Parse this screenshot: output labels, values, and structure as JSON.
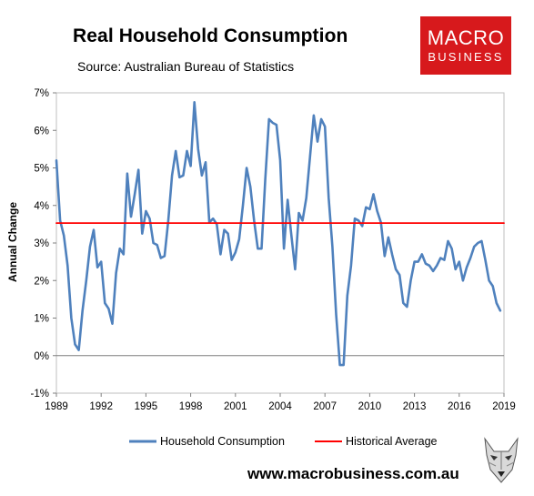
{
  "header": {
    "title": "Real Household Consumption",
    "subtitle": "Source: Australian Bureau of Statistics"
  },
  "logo": {
    "line1": "MACRO",
    "line2": "BUSINESS",
    "bg_color": "#d7191c"
  },
  "footer": {
    "website": "www.macrobusiness.com.au"
  },
  "chart_data": {
    "type": "line",
    "title": "Real Household Consumption",
    "ylabel": "Annual Change",
    "xlabel": "",
    "xlim": [
      1989,
      2019
    ],
    "ylim": [
      -1,
      7
    ],
    "x_ticks": [
      "1989",
      "1992",
      "1995",
      "1998",
      "2001",
      "2004",
      "2007",
      "2010",
      "2013",
      "2016",
      "2019"
    ],
    "y_ticks": [
      "-1%",
      "0%",
      "1%",
      "2%",
      "3%",
      "4%",
      "5%",
      "6%",
      "7%"
    ],
    "legend_position": "bottom",
    "series": [
      {
        "name": "Household Consumption",
        "color": "#4f81bd",
        "x": [
          1989.0,
          1989.25,
          1989.5,
          1989.75,
          1990.0,
          1990.25,
          1990.5,
          1990.75,
          1991.0,
          1991.25,
          1991.5,
          1991.75,
          1992.0,
          1992.25,
          1992.5,
          1992.75,
          1993.0,
          1993.25,
          1993.5,
          1993.75,
          1994.0,
          1994.25,
          1994.5,
          1994.75,
          1995.0,
          1995.25,
          1995.5,
          1995.75,
          1996.0,
          1996.25,
          1996.5,
          1996.75,
          1997.0,
          1997.25,
          1997.5,
          1997.75,
          1998.0,
          1998.25,
          1998.5,
          1998.75,
          1999.0,
          1999.25,
          1999.5,
          1999.75,
          2000.0,
          2000.25,
          2000.5,
          2000.75,
          2001.0,
          2001.25,
          2001.5,
          2001.75,
          2002.0,
          2002.25,
          2002.5,
          2002.75,
          2003.0,
          2003.25,
          2003.5,
          2003.75,
          2004.0,
          2004.25,
          2004.5,
          2004.75,
          2005.0,
          2005.25,
          2005.5,
          2005.75,
          2006.0,
          2006.25,
          2006.5,
          2006.75,
          2007.0,
          2007.25,
          2007.5,
          2007.75,
          2008.0,
          2008.25,
          2008.5,
          2008.75,
          2009.0,
          2009.25,
          2009.5,
          2009.75,
          2010.0,
          2010.25,
          2010.5,
          2010.75,
          2011.0,
          2011.25,
          2011.5,
          2011.75,
          2012.0,
          2012.25,
          2012.5,
          2012.75,
          2013.0,
          2013.25,
          2013.5,
          2013.75,
          2014.0,
          2014.25,
          2014.5,
          2014.75,
          2015.0,
          2015.25,
          2015.5,
          2015.75,
          2016.0,
          2016.25,
          2016.5,
          2016.75,
          2017.0,
          2017.25,
          2017.5,
          2017.75,
          2018.0,
          2018.25,
          2018.5,
          2018.75
        ],
        "values": [
          5.2,
          3.6,
          3.2,
          2.4,
          1.0,
          0.3,
          0.15,
          1.2,
          2.0,
          2.9,
          3.35,
          2.35,
          2.5,
          1.4,
          1.25,
          0.85,
          2.2,
          2.85,
          2.7,
          4.85,
          3.7,
          4.3,
          4.95,
          3.25,
          3.85,
          3.65,
          3.0,
          2.95,
          2.6,
          2.65,
          3.6,
          4.8,
          5.45,
          4.75,
          4.8,
          5.45,
          5.05,
          6.75,
          5.5,
          4.8,
          5.15,
          3.55,
          3.65,
          3.5,
          2.7,
          3.35,
          3.25,
          2.55,
          2.75,
          3.1,
          4.0,
          5.0,
          4.5,
          3.6,
          2.85,
          2.85,
          4.7,
          6.3,
          6.2,
          6.15,
          5.2,
          2.85,
          4.15,
          3.2,
          2.3,
          3.8,
          3.6,
          4.2,
          5.3,
          6.4,
          5.7,
          6.3,
          6.1,
          4.2,
          2.9,
          1.1,
          -0.25,
          -0.25,
          1.6,
          2.4,
          3.65,
          3.6,
          3.45,
          3.95,
          3.9,
          4.3,
          3.85,
          3.55,
          2.65,
          3.15,
          2.7,
          2.3,
          2.15,
          1.4,
          1.3,
          2.0,
          2.5,
          2.5,
          2.7,
          2.45,
          2.4,
          2.25,
          2.4,
          2.6,
          2.55,
          3.05,
          2.85,
          2.3,
          2.5,
          2.0,
          2.35,
          2.6,
          2.9,
          3.0,
          3.05,
          2.55,
          2.0,
          1.85,
          1.4,
          1.2
        ]
      },
      {
        "name": "Historical Average",
        "color": "#ff0000",
        "x": [
          1989,
          2019
        ],
        "values": [
          3.53,
          3.53
        ]
      }
    ]
  }
}
